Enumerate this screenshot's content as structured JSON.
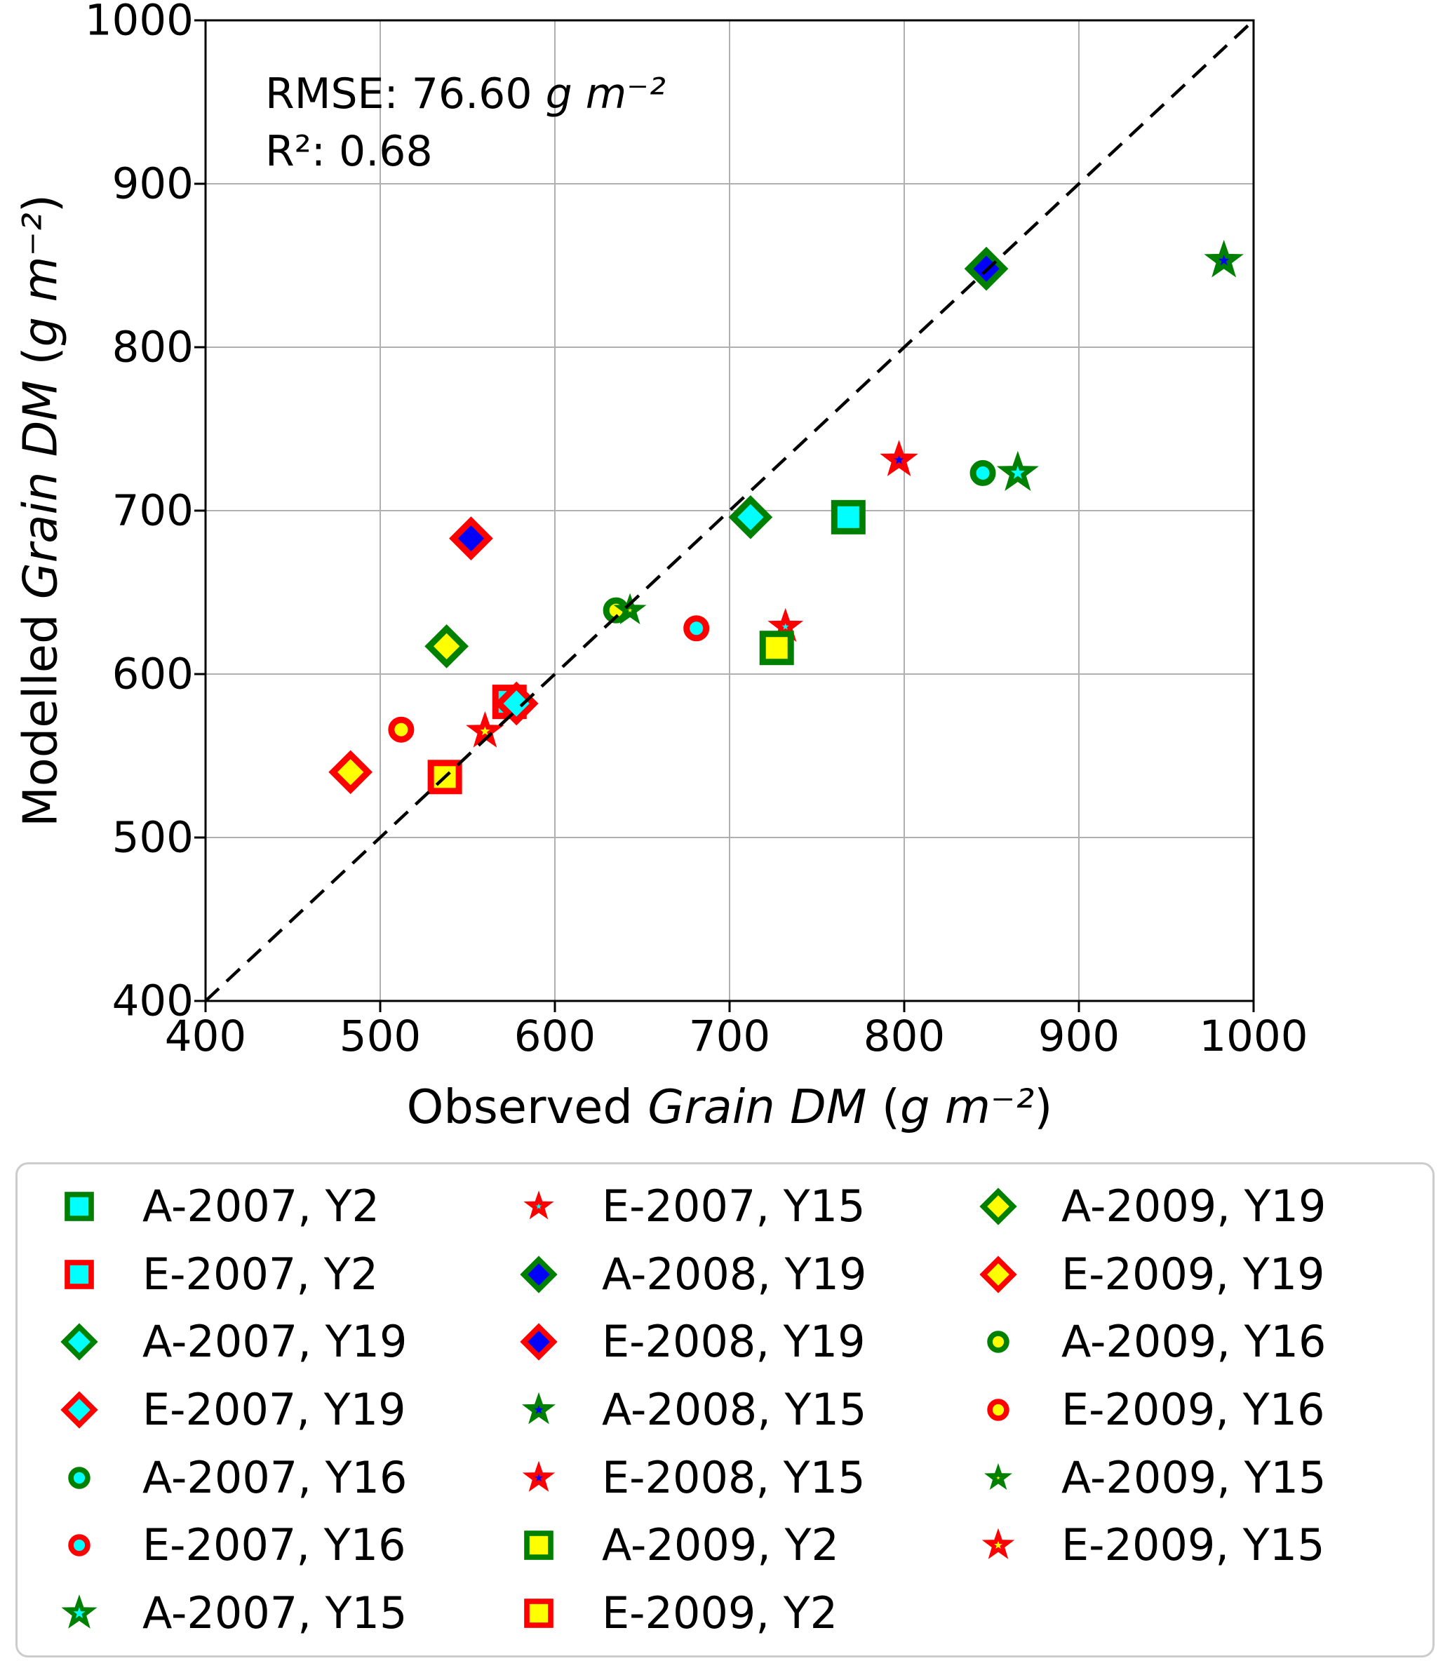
{
  "figure_title": "",
  "stats": {
    "rmse_line": [
      {
        "text": "RMSE: 76.60 ",
        "italic": false
      },
      {
        "text": "g m⁻²",
        "italic": true
      }
    ],
    "r2_line": [
      {
        "text": "R²: 0.68",
        "italic": false
      }
    ]
  },
  "chart_data": {
    "type": "scatter",
    "xlabel": "Observed Grain DM (g m⁻²)",
    "ylabel": "Modelled Grain DM (g m⁻²)",
    "xlabel_parts": [
      {
        "text": "Observed ",
        "italic": false
      },
      {
        "text": "Grain DM",
        "italic": true
      },
      {
        "text": " (",
        "italic": false
      },
      {
        "text": "g m⁻²",
        "italic": true
      },
      {
        "text": ")",
        "italic": false
      }
    ],
    "ylabel_parts": [
      {
        "text": "Modelled ",
        "italic": false
      },
      {
        "text": "Grain DM",
        "italic": true
      },
      {
        "text": " (",
        "italic": false
      },
      {
        "text": "g m⁻²",
        "italic": true
      },
      {
        "text": ")",
        "italic": false
      }
    ],
    "xlim": [
      400,
      1000
    ],
    "ylim": [
      400,
      1000
    ],
    "xticks": [
      400,
      500,
      600,
      700,
      800,
      900,
      1000
    ],
    "yticks": [
      400,
      500,
      600,
      700,
      800,
      900,
      1000
    ],
    "grid": true,
    "grid_color": "#b0b0b0",
    "identity_line": {
      "from": [
        400,
        400
      ],
      "to": [
        1000,
        1000
      ],
      "style": "dashed",
      "color": "#000000"
    },
    "annotations": [
      "RMSE: 76.60 g m⁻²",
      "R²: 0.68"
    ],
    "legend_position": "below-plot",
    "legend_columns": 3,
    "legend_rows_per_column": 7,
    "colors": {
      "year_2007_fill": "#00ffff",
      "year_2008_fill": "#0000ff",
      "year_2009_fill": "#ffff00",
      "edge_A": "#008000",
      "edge_E": "#ff0000"
    },
    "series": [
      {
        "name": "A-2007, Y2",
        "marker": "square",
        "fill": "#00ffff",
        "edge": "#008000",
        "size": 20,
        "stroke": 9,
        "points": [
          [
            768,
            696
          ]
        ]
      },
      {
        "name": "E-2007, Y2",
        "marker": "square",
        "fill": "#00ffff",
        "edge": "#ff0000",
        "size": 20,
        "stroke": 9,
        "points": [
          [
            574,
            583
          ]
        ]
      },
      {
        "name": "A-2007, Y19",
        "marker": "diamond",
        "fill": "#00ffff",
        "edge": "#008000",
        "size": 25,
        "stroke": 9,
        "points": [
          [
            712,
            696
          ]
        ]
      },
      {
        "name": "E-2007, Y19",
        "marker": "diamond",
        "fill": "#00ffff",
        "edge": "#ff0000",
        "size": 25,
        "stroke": 9,
        "points": [
          [
            578,
            582
          ]
        ]
      },
      {
        "name": "A-2007, Y16",
        "marker": "circle",
        "fill": "#00ffff",
        "edge": "#008000",
        "size": 14,
        "stroke": 9,
        "points": [
          [
            845,
            723
          ]
        ]
      },
      {
        "name": "E-2007, Y16",
        "marker": "circle",
        "fill": "#00ffff",
        "edge": "#ff0000",
        "size": 14,
        "stroke": 9,
        "points": [
          [
            681,
            628
          ]
        ]
      },
      {
        "name": "A-2007, Y15",
        "marker": "star",
        "fill": "#00ffff",
        "edge": "#008000",
        "size": 21,
        "stroke": 7,
        "points": [
          [
            865,
            723
          ]
        ]
      },
      {
        "name": "E-2007, Y15",
        "marker": "star",
        "fill": "#00ffff",
        "edge": "#ff0000",
        "size": 16,
        "stroke": 7,
        "points": [
          [
            732,
            629
          ]
        ]
      },
      {
        "name": "A-2008, Y19",
        "marker": "diamond",
        "fill": "#0000ff",
        "edge": "#008000",
        "size": 25,
        "stroke": 9,
        "points": [
          [
            847,
            848
          ]
        ]
      },
      {
        "name": "E-2008, Y19",
        "marker": "diamond",
        "fill": "#0000ff",
        "edge": "#ff0000",
        "size": 25,
        "stroke": 9,
        "points": [
          [
            552,
            683
          ]
        ]
      },
      {
        "name": "A-2008, Y15",
        "marker": "star",
        "fill": "#0000ff",
        "edge": "#008000",
        "size": 19,
        "stroke": 7,
        "points": [
          [
            983,
            853
          ]
        ]
      },
      {
        "name": "E-2008, Y15",
        "marker": "star",
        "fill": "#0000ff",
        "edge": "#ff0000",
        "size": 18,
        "stroke": 7,
        "points": [
          [
            797,
            731
          ]
        ]
      },
      {
        "name": "A-2009, Y2",
        "marker": "square",
        "fill": "#ffff00",
        "edge": "#008000",
        "size": 20,
        "stroke": 9,
        "points": [
          [
            727,
            616
          ]
        ]
      },
      {
        "name": "E-2009, Y2",
        "marker": "square",
        "fill": "#ffff00",
        "edge": "#ff0000",
        "size": 20,
        "stroke": 9,
        "points": [
          [
            537,
            537
          ]
        ]
      },
      {
        "name": "A-2009, Y19",
        "marker": "diamond",
        "fill": "#ffff00",
        "edge": "#008000",
        "size": 25,
        "stroke": 9,
        "points": [
          [
            538,
            617
          ]
        ]
      },
      {
        "name": "E-2009, Y19",
        "marker": "diamond",
        "fill": "#ffff00",
        "edge": "#ff0000",
        "size": 25,
        "stroke": 9,
        "points": [
          [
            483,
            540
          ]
        ]
      },
      {
        "name": "A-2009, Y16",
        "marker": "circle",
        "fill": "#ffff00",
        "edge": "#008000",
        "size": 14,
        "stroke": 9,
        "points": [
          [
            635,
            639
          ]
        ]
      },
      {
        "name": "E-2009, Y16",
        "marker": "circle",
        "fill": "#ffff00",
        "edge": "#ff0000",
        "size": 14,
        "stroke": 9,
        "points": [
          [
            512,
            566
          ]
        ]
      },
      {
        "name": "A-2009, Y15",
        "marker": "star",
        "fill": "#ffff00",
        "edge": "#008000",
        "size": 14,
        "stroke": 7,
        "points": [
          [
            643,
            639
          ]
        ]
      },
      {
        "name": "E-2009, Y15",
        "marker": "star",
        "fill": "#ffff00",
        "edge": "#ff0000",
        "size": 18,
        "stroke": 7,
        "points": [
          [
            560,
            565
          ]
        ]
      }
    ]
  }
}
